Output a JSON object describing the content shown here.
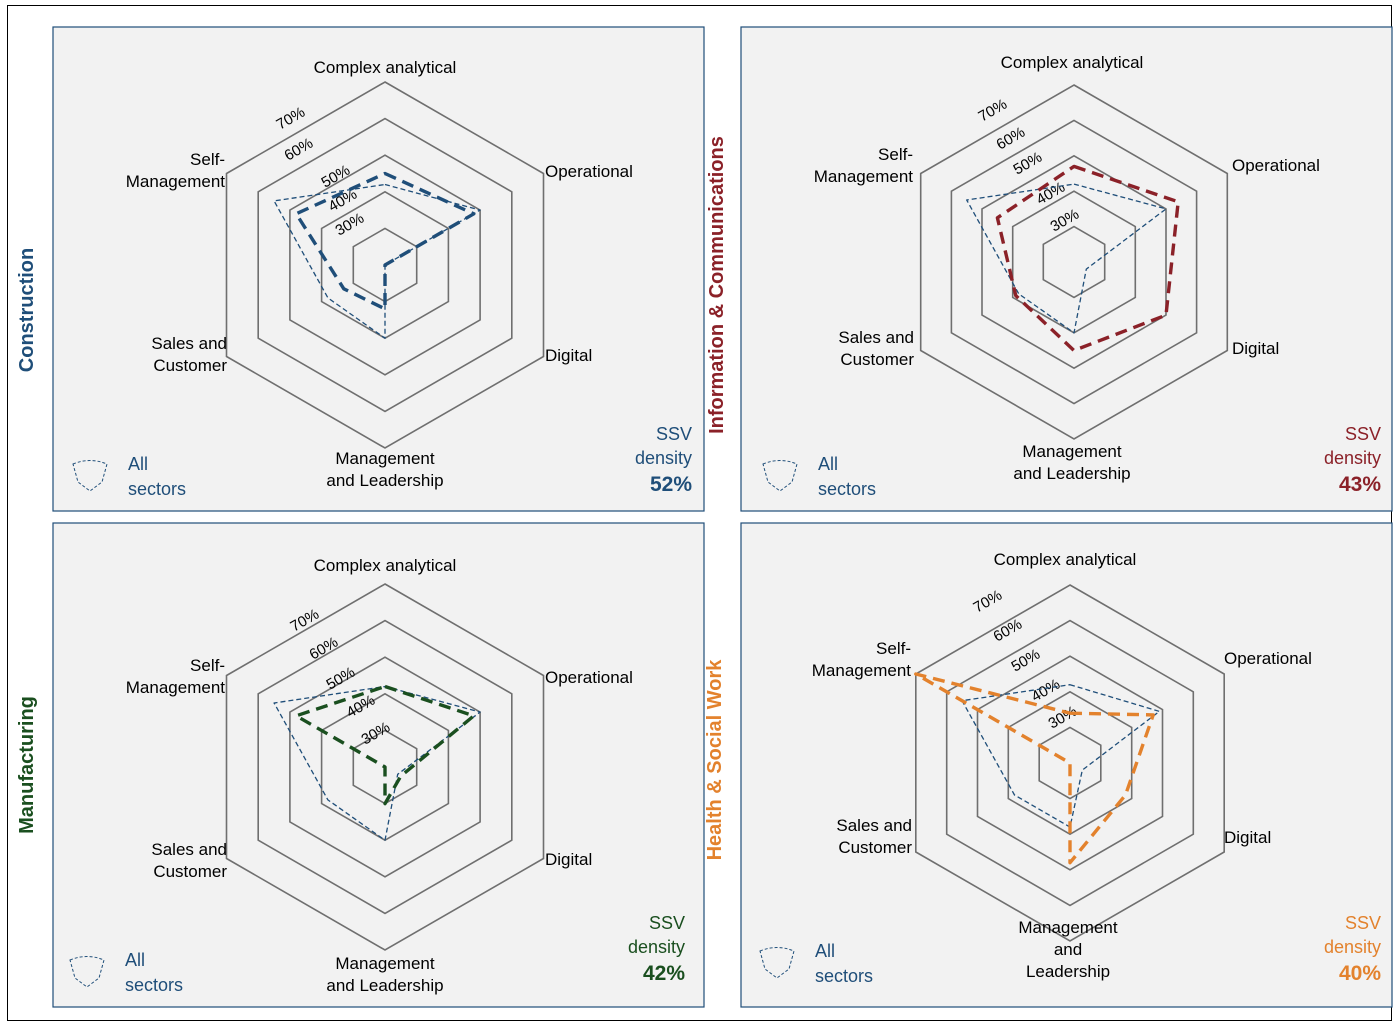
{
  "chart_data": [
    {
      "type": "radar",
      "title": "Construction",
      "axes": [
        "Complex analytical",
        "Operational",
        "Digital",
        "Management and Leadership",
        "Sales and Customer",
        "Self-Management"
      ],
      "rlim": [
        20,
        70
      ],
      "ticks": [
        "30%",
        "40%",
        "50%",
        "60%",
        "70%"
      ],
      "series": [
        {
          "name": "Construction",
          "values": [
            45,
            48,
            20,
            32,
            33,
            48
          ],
          "color": "#1f4e79",
          "style": "dashed-thick"
        },
        {
          "name": "All sectors",
          "values": [
            42,
            50,
            20,
            40,
            38,
            55
          ],
          "color": "#1f4e79",
          "style": "dashed-thin"
        }
      ],
      "legend": {
        "line1": "All",
        "line2": "sectors"
      },
      "ssv": {
        "label1": "SSV",
        "label2": "density",
        "value": "52%"
      },
      "accent": "#1f4e79"
    },
    {
      "type": "radar",
      "title": "Information & Communications",
      "axes": [
        "Complex analytical",
        "Operational",
        "Digital",
        "Management and Leadership",
        "Sales and Customer",
        "Self-Management"
      ],
      "rlim": [
        20,
        70
      ],
      "ticks": [
        "30%",
        "40%",
        "50%",
        "60%",
        "70%"
      ],
      "series": [
        {
          "name": "Information & Communications",
          "values": [
            47,
            54,
            50,
            45,
            39,
            45
          ],
          "color": "#8b2128",
          "style": "dashed-thick"
        },
        {
          "name": "All sectors",
          "values": [
            42,
            50,
            24,
            40,
            38,
            55
          ],
          "color": "#1f4e79",
          "style": "dashed-thin"
        }
      ],
      "legend": {
        "line1": "All",
        "line2": "sectors"
      },
      "ssv": {
        "label1": "SSV",
        "label2": "density",
        "value": "43%"
      },
      "accent": "#8b2128"
    },
    {
      "type": "radar",
      "title": "Manufacturing",
      "axes": [
        "Complex analytical",
        "Operational",
        "Digital",
        "Management and Leadership",
        "Sales and Customer",
        "Self-Management"
      ],
      "rlim": [
        20,
        70
      ],
      "ticks": [
        "30%",
        "40%",
        "50%",
        "60%",
        "70%"
      ],
      "series": [
        {
          "name": "Manufacturing",
          "values": [
            42,
            48,
            25,
            30,
            20,
            48
          ],
          "color": "#1a4f1f",
          "style": "dashed-thick"
        },
        {
          "name": "All sectors",
          "values": [
            42,
            50,
            24,
            40,
            38,
            55
          ],
          "color": "#1f4e79",
          "style": "dashed-thin"
        }
      ],
      "legend": {
        "line1": "All",
        "line2": "sectors"
      },
      "ssv": {
        "label1": "SSV",
        "label2": "density",
        "value": "42%"
      },
      "accent": "#1a4f1f"
    },
    {
      "type": "radar",
      "title": "Health & Social Work",
      "axes": [
        "Complex analytical",
        "Operational",
        "Digital",
        "Management and Leadership",
        "Sales and Customer",
        "Self-Management"
      ],
      "rlim": [
        20,
        70
      ],
      "ticks": [
        "30%",
        "40%",
        "50%",
        "60%",
        "70%"
      ],
      "series": [
        {
          "name": "Health & Social Work",
          "values": [
            34,
            47,
            38,
            48,
            20,
            70
          ],
          "color": "#e3822d",
          "style": "dashed-thick"
        },
        {
          "name": "All sectors",
          "values": [
            42,
            49,
            24,
            38,
            38,
            55
          ],
          "color": "#1f4e79",
          "style": "dashed-thin"
        }
      ],
      "legend": {
        "line1": "All",
        "line2": "sectors"
      },
      "ssv": {
        "label1": "SSV",
        "label2": "density",
        "value": "40%"
      },
      "accent": "#e3822d"
    }
  ]
}
